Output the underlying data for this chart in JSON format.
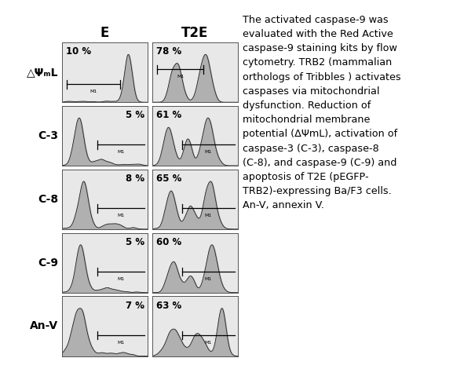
{
  "col_labels": [
    "E",
    "T2E"
  ],
  "row_labels": [
    "△ΨₘL",
    "C-3",
    "C-8",
    "C-9",
    "An-V"
  ],
  "percentages_E": [
    "10 %",
    "5 %",
    "8 %",
    "5 %",
    "7 %"
  ],
  "percentages_T2E": [
    "78 %",
    "61 %",
    "65 %",
    "60 %",
    "63 %"
  ],
  "description_lines": [
    "The activated caspase-9 was",
    "evaluated with the Red Active",
    "caspase-9 staining kits by flow",
    "cytometry. TRB2 (mammalian",
    "orthologs of Tribbles ) activates",
    "caspases via mitochondrial",
    "dysfunction. Reduction of",
    "mitochondrial membrane",
    "potential (ΔΨmL), activation of",
    "caspase-3 (C-3), caspase-8",
    "(C-8), and caspase-9 (C-9) and",
    "apoptosis of T2E (pEGFP-",
    "TRB2)-expressing Ba/F3 cells.",
    "An-V, annexin V."
  ],
  "bg_color": "#ffffff",
  "hist_face_color": "#aaaaaa",
  "hist_edge_color": "#222222"
}
